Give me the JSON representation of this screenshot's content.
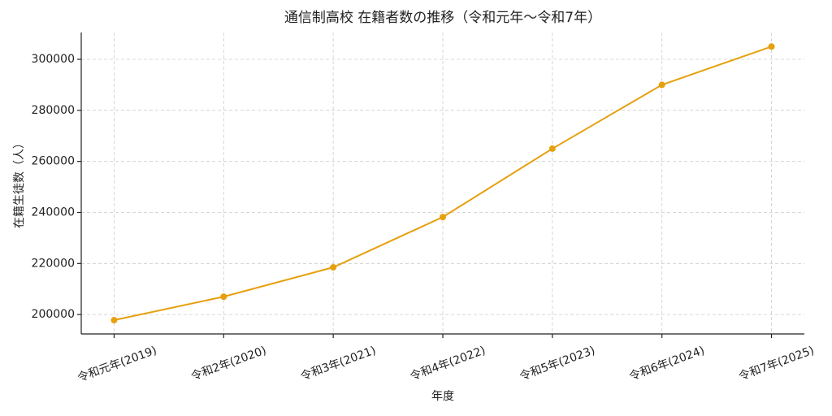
{
  "chart_data": {
    "type": "line",
    "title": "通信制高校 在籍者数の推移（令和元年〜令和7年）",
    "xlabel": "年度",
    "ylabel": "在籍生徒数（人）",
    "categories": [
      "令和元年(2019)",
      "令和2年(2020)",
      "令和3年(2021)",
      "令和4年(2022)",
      "令和5年(2023)",
      "令和6年(2024)",
      "令和7年(2025)"
    ],
    "values": [
      197800,
      207000,
      218500,
      238200,
      265000,
      290000,
      305000
    ],
    "color": "#e6a00e",
    "ylim": [
      192400,
      310500
    ],
    "yticks": [
      200000,
      220000,
      240000,
      260000,
      280000,
      300000
    ],
    "grid": true
  }
}
